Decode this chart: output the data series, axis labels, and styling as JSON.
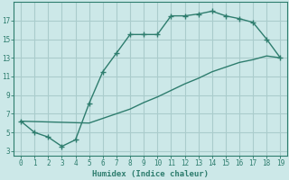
{
  "xlabel": "Humidex (Indice chaleur)",
  "background_color": "#cce8e8",
  "grid_color": "#aacccc",
  "line_color": "#2e7d6e",
  "xlim": [
    -0.5,
    19.5
  ],
  "ylim": [
    2.5,
    19.0
  ],
  "xticks": [
    0,
    1,
    2,
    3,
    4,
    5,
    6,
    7,
    8,
    9,
    10,
    11,
    12,
    13,
    14,
    15,
    16,
    17,
    18,
    19
  ],
  "yticks": [
    3,
    5,
    7,
    9,
    11,
    13,
    15,
    17
  ],
  "upper_x": [
    0,
    1,
    2,
    3,
    4,
    5,
    6,
    7,
    8,
    9,
    10,
    11,
    12,
    13,
    14,
    15,
    16,
    17,
    18,
    19
  ],
  "upper_y": [
    6.2,
    5.0,
    4.5,
    3.5,
    4.2,
    8.1,
    11.5,
    13.5,
    15.5,
    15.5,
    15.5,
    17.5,
    17.5,
    17.7,
    18.0,
    17.5,
    17.2,
    16.8,
    15.0,
    13.0
  ],
  "lower_x": [
    0,
    5,
    6,
    7,
    8,
    9,
    10,
    11,
    12,
    13,
    14,
    15,
    16,
    17,
    18,
    19
  ],
  "lower_y": [
    6.2,
    6.0,
    6.5,
    7.0,
    7.5,
    8.2,
    8.8,
    9.5,
    10.2,
    10.8,
    11.5,
    12.0,
    12.5,
    12.8,
    13.2,
    13.0
  ]
}
